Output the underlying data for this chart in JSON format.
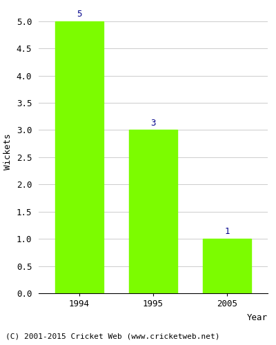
{
  "categories": [
    "1994",
    "1995",
    "2005"
  ],
  "values": [
    5,
    3,
    1
  ],
  "bar_color": "#7CFC00",
  "bar_width": 0.65,
  "xlabel": "Year",
  "ylabel": "Wickets",
  "ylim": [
    0,
    5.2
  ],
  "yticks": [
    0.0,
    0.5,
    1.0,
    1.5,
    2.0,
    2.5,
    3.0,
    3.5,
    4.0,
    4.5,
    5.0
  ],
  "label_color": "#00008B",
  "label_fontsize": 9,
  "axis_label_fontsize": 9,
  "tick_fontsize": 9,
  "footer_text": "(C) 2001-2015 Cricket Web (www.cricketweb.net)",
  "footer_fontsize": 8,
  "background_color": "#ffffff",
  "grid_color": "#cccccc"
}
